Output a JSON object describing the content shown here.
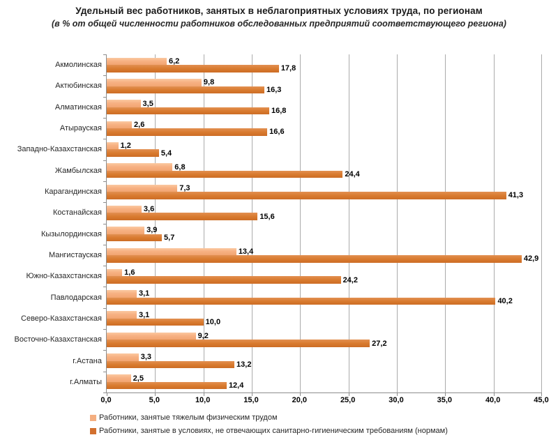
{
  "title": "Удельный вес работников, занятых в неблагоприятных условиях труда, по регионам",
  "subtitle": "(в % от общей численности  работников обследованных предприятий соответствующего  региона)",
  "colors": {
    "series1_light_bar": "#F7B183",
    "series2_dark_bar": "#D97B2F",
    "gridline": "#ABABAB",
    "axis": "#8C8C8C",
    "title_text": "#1a1a1a"
  },
  "chart_data": {
    "type": "bar",
    "orientation": "horizontal",
    "title": "Удельный вес работников, занятых в неблагоприятных условиях труда, по регионам",
    "subtitle": "(в % от общей численности  работников обследованных предприятий соответствующего  региона)",
    "categories": [
      "Акмолинская",
      "Актюбинская",
      "Алматинская",
      "Атырауская",
      "Западно-Казахстанская",
      "Жамбылская",
      "Карагандинская",
      "Костанайская",
      "Кызылординская",
      "Мангистауская",
      "Южно-Казахстанская",
      "Павлодарская",
      "Северо-Казахстанская",
      "Восточно-Казахстанская",
      "г.Астана",
      "г.Алматы"
    ],
    "series": [
      {
        "name": "Работники, занятые тяжелым физическим трудом",
        "color": "#F7B183",
        "values": [
          6.2,
          9.8,
          3.5,
          2.6,
          1.2,
          6.8,
          7.3,
          3.6,
          3.9,
          13.4,
          1.6,
          3.1,
          3.1,
          9.2,
          3.3,
          2.5
        ]
      },
      {
        "name": "Работники, занятые в условиях, не отвечающих санитарно-гигиеническим требованиям (нормам)",
        "color": "#D97B2F",
        "values": [
          17.8,
          16.3,
          16.8,
          16.6,
          5.4,
          24.4,
          41.3,
          15.6,
          5.7,
          42.9,
          24.2,
          40.2,
          10.0,
          27.2,
          13.2,
          12.4
        ]
      }
    ],
    "xlim": [
      0,
      45
    ],
    "x_tick_step": 5,
    "x_tick_labels": [
      "0,0",
      "5,0",
      "10,0",
      "15,0",
      "20,0",
      "25,0",
      "30,0",
      "35,0",
      "40,0",
      "45,0"
    ],
    "grid": "vertical",
    "value_labels": true,
    "decimal_separator": ",",
    "legend_position": "bottom-left"
  }
}
